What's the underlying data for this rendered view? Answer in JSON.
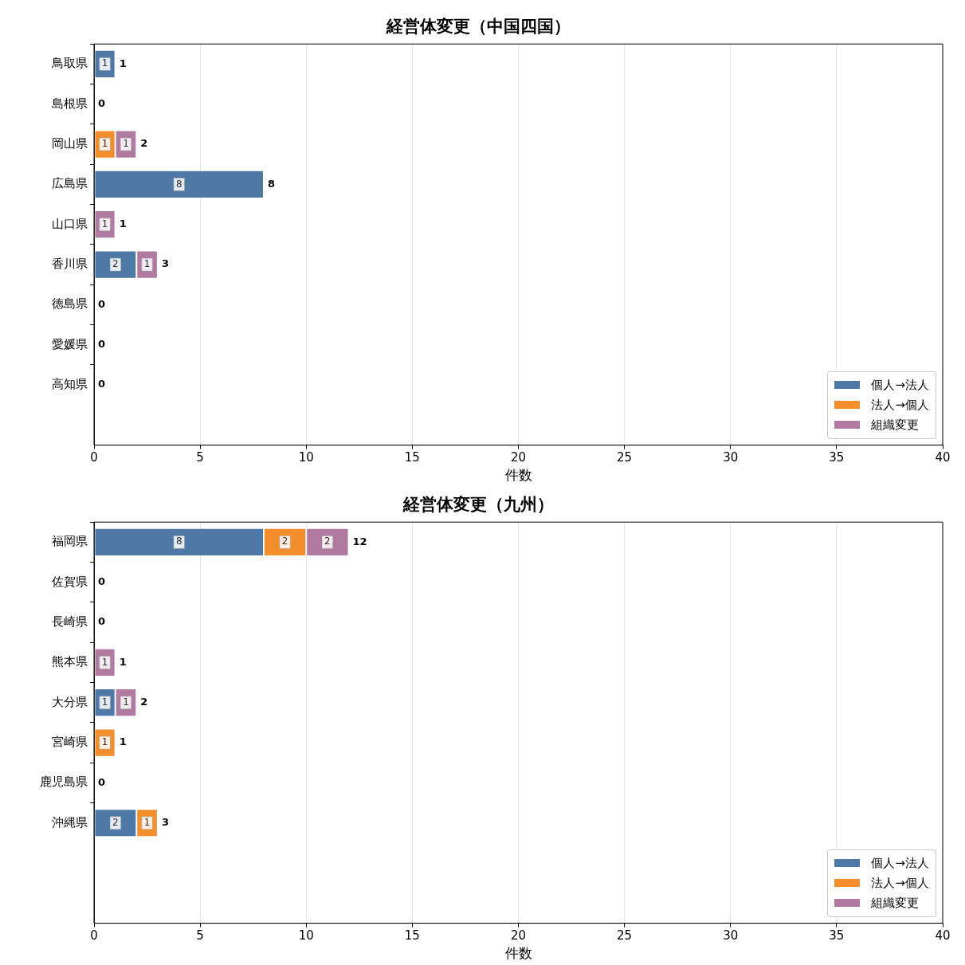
{
  "chart_data": [
    {
      "type": "bar",
      "orientation": "horizontal",
      "stacked": true,
      "title": "経営体変更（中国四国）",
      "xlabel": "件数",
      "categories": [
        "鳥取県",
        "島根県",
        "岡山県",
        "広島県",
        "山口県",
        "香川県",
        "徳島県",
        "愛媛県",
        "高知県"
      ],
      "series": [
        {
          "name": "個人→法人",
          "color": "#4e79a7",
          "values": [
            1,
            0,
            0,
            8,
            0,
            2,
            0,
            0,
            0
          ],
          "value_labels": [
            "1",
            null,
            null,
            "8",
            null,
            "2",
            null,
            null,
            null
          ]
        },
        {
          "name": "法人→個人",
          "color": "#f28e2b",
          "values": [
            0,
            0,
            1,
            0,
            0,
            0,
            0,
            0,
            0
          ],
          "value_labels": [
            null,
            null,
            "1",
            null,
            null,
            null,
            null,
            null,
            null
          ]
        },
        {
          "name": "組織変更",
          "color": "#b07aa1",
          "values": [
            0,
            0,
            1,
            0,
            1,
            1,
            0,
            0,
            0
          ],
          "value_labels": [
            null,
            null,
            "1",
            null,
            "1",
            "1",
            null,
            null,
            null
          ]
        }
      ],
      "totals": [
        "1",
        "0",
        "2",
        "8",
        "1",
        "3",
        "0",
        "0",
        "0"
      ],
      "xlim": [
        0,
        40
      ],
      "xticks": [
        0,
        5,
        10,
        15,
        20,
        25,
        30,
        35,
        40
      ],
      "grid": "x",
      "legend": "bottom right"
    },
    {
      "type": "bar",
      "orientation": "horizontal",
      "stacked": true,
      "title": "経営体変更（九州）",
      "xlabel": "件数",
      "categories": [
        "福岡県",
        "佐賀県",
        "長崎県",
        "熊本県",
        "大分県",
        "宮崎県",
        "鹿児島県",
        "沖縄県"
      ],
      "series": [
        {
          "name": "個人→法人",
          "color": "#4e79a7",
          "values": [
            8,
            0,
            0,
            0,
            1,
            0,
            0,
            2
          ],
          "value_labels": [
            "8",
            null,
            null,
            null,
            "1",
            null,
            null,
            "2"
          ]
        },
        {
          "name": "法人→個人",
          "color": "#f28e2b",
          "values": [
            2,
            0,
            0,
            0,
            0,
            1,
            0,
            1
          ],
          "value_labels": [
            "2",
            null,
            null,
            null,
            null,
            "1",
            null,
            "1"
          ]
        },
        {
          "name": "組織変更",
          "color": "#b07aa1",
          "values": [
            2,
            0,
            0,
            1,
            1,
            0,
            0,
            0
          ],
          "value_labels": [
            "2",
            null,
            null,
            "1",
            "1",
            null,
            null,
            null
          ]
        }
      ],
      "totals": [
        "12",
        "0",
        "0",
        "1",
        "2",
        "1",
        "0",
        "3"
      ],
      "xlim": [
        0,
        40
      ],
      "xticks": [
        0,
        5,
        10,
        15,
        20,
        25,
        30,
        35,
        40
      ],
      "grid": "x",
      "legend": "bottom right"
    }
  ]
}
